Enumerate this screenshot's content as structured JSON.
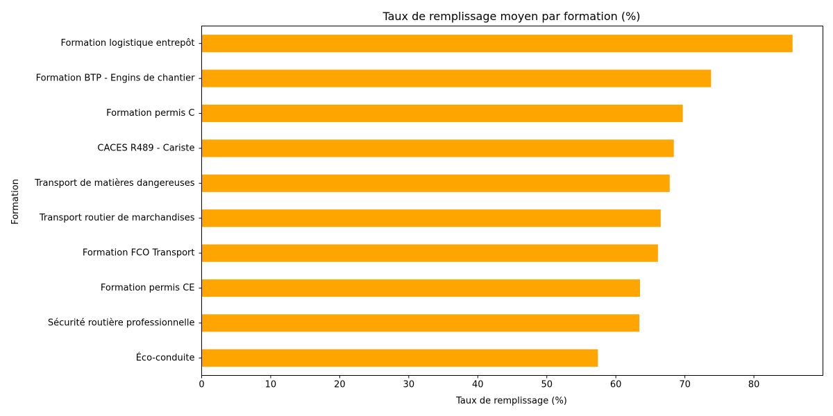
{
  "chart_data": {
    "type": "bar",
    "orientation": "horizontal",
    "title": "Taux de remplissage moyen par formation (%)",
    "xlabel": "Taux de remplissage (%)",
    "ylabel": "Formation",
    "categories": [
      "Éco-conduite",
      "Sécurité routière professionnelle",
      "Formation permis CE",
      "Formation FCO Transport",
      "Transport routier de marchandises",
      "Transport de matières dangereuses",
      "CACES R489 - Cariste",
      "Formation permis C",
      "Formation BTP - Engins de chantier",
      "Formation logistique entrepôt"
    ],
    "values": [
      57.4,
      63.4,
      63.5,
      66.1,
      66.5,
      67.8,
      68.4,
      69.7,
      73.8,
      85.6
    ],
    "xlim": [
      0,
      90
    ],
    "xticks": [
      0,
      10,
      20,
      30,
      40,
      50,
      60,
      70,
      80
    ],
    "grid": false,
    "bar_color": "#FFA500"
  }
}
